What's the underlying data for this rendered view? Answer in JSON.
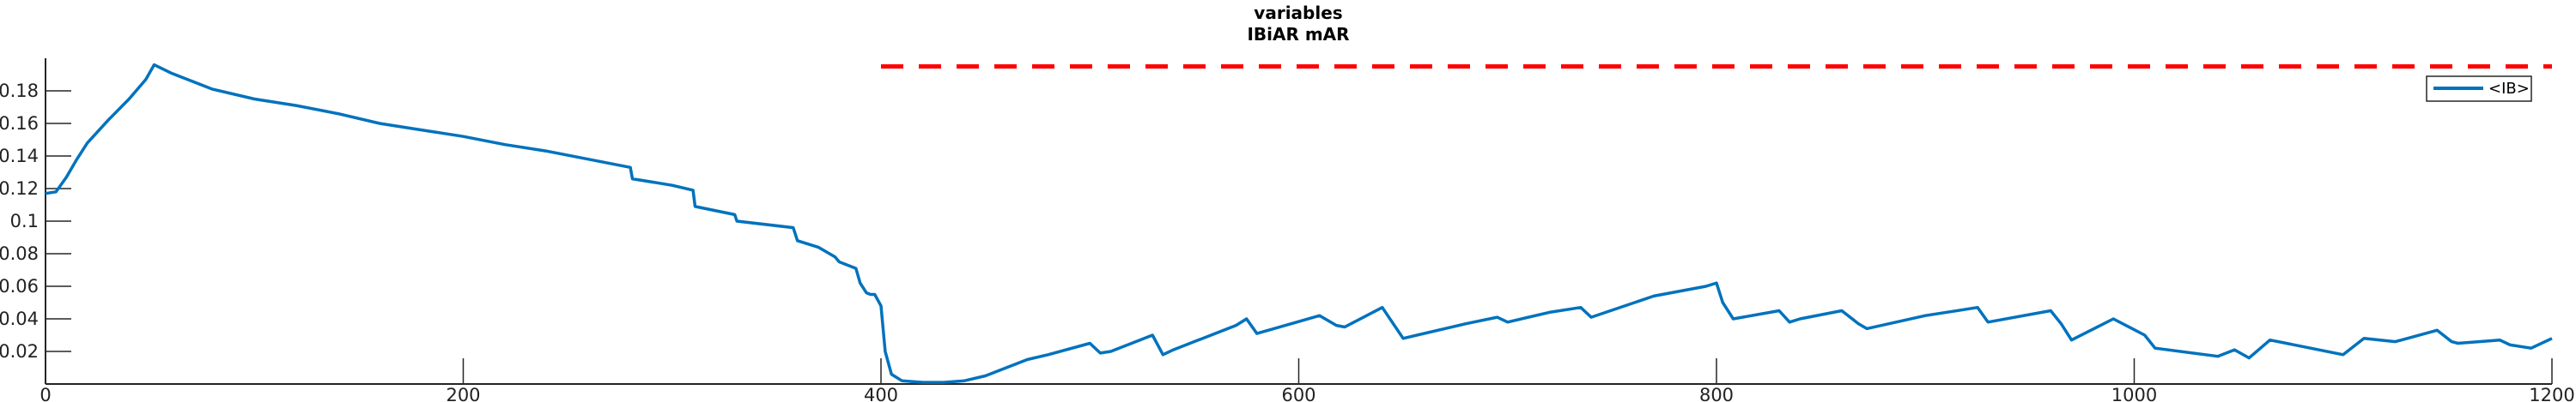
{
  "chart_data": {
    "type": "line",
    "title": [
      "variables",
      "IBiAR mAR"
    ],
    "xlabel": "",
    "ylabel": "",
    "xlim": [
      0,
      1200
    ],
    "ylim": [
      0,
      0.2
    ],
    "xticks": [
      0,
      200,
      400,
      600,
      800,
      1000,
      1200
    ],
    "yticks": [
      0.02,
      0.04,
      0.06,
      0.08,
      0.1,
      0.12,
      0.14,
      0.16,
      0.18
    ],
    "grid": false,
    "legend": {
      "placement": "top-right",
      "entries": [
        "<IB>"
      ]
    },
    "colors": {
      "series": "#0072BD",
      "reference": "#FF0000"
    },
    "reference_line": {
      "y": 0.195,
      "x_start": 400,
      "x_end": 1200,
      "style": "dashed"
    },
    "series": [
      {
        "name": "<IB>",
        "x": [
          0,
          5,
          10,
          15,
          20,
          30,
          40,
          48,
          52,
          60,
          70,
          80,
          100,
          120,
          140,
          160,
          180,
          200,
          220,
          240,
          260,
          280,
          281,
          300,
          310,
          311,
          330,
          331,
          358,
          360,
          370,
          378,
          380,
          388,
          390,
          393,
          395,
          397,
          400,
          402,
          405,
          410,
          420,
          430,
          440,
          450,
          470,
          480,
          500,
          505,
          510,
          530,
          535,
          540,
          570,
          575,
          580,
          610,
          618,
          622,
          640,
          650,
          680,
          695,
          700,
          720,
          735,
          740,
          770,
          795,
          800,
          803,
          808,
          830,
          835,
          840,
          860,
          868,
          872,
          900,
          925,
          930,
          960,
          965,
          970,
          990,
          1005,
          1010,
          1040,
          1048,
          1055,
          1065,
          1100,
          1110,
          1125,
          1145,
          1152,
          1155,
          1175,
          1180,
          1190,
          1200
        ],
        "y": [
          0.117,
          0.118,
          0.127,
          0.138,
          0.148,
          0.162,
          0.175,
          0.187,
          0.196,
          0.191,
          0.186,
          0.181,
          0.175,
          0.171,
          0.166,
          0.16,
          0.156,
          0.152,
          0.147,
          0.143,
          0.138,
          0.133,
          0.126,
          0.122,
          0.119,
          0.109,
          0.104,
          0.1,
          0.096,
          0.088,
          0.084,
          0.078,
          0.075,
          0.071,
          0.062,
          0.056,
          0.055,
          0.055,
          0.048,
          0.02,
          0.006,
          0.002,
          0.001,
          0.001,
          0.002,
          0.005,
          0.015,
          0.018,
          0.025,
          0.019,
          0.02,
          0.03,
          0.018,
          0.021,
          0.036,
          0.04,
          0.031,
          0.042,
          0.036,
          0.035,
          0.047,
          0.028,
          0.037,
          0.041,
          0.038,
          0.044,
          0.047,
          0.041,
          0.054,
          0.06,
          0.062,
          0.05,
          0.04,
          0.045,
          0.038,
          0.04,
          0.045,
          0.037,
          0.034,
          0.042,
          0.047,
          0.038,
          0.045,
          0.037,
          0.027,
          0.04,
          0.03,
          0.022,
          0.017,
          0.021,
          0.016,
          0.027,
          0.018,
          0.028,
          0.026,
          0.033,
          0.026,
          0.025,
          0.027,
          0.024,
          0.022,
          0.028
        ]
      }
    ]
  }
}
